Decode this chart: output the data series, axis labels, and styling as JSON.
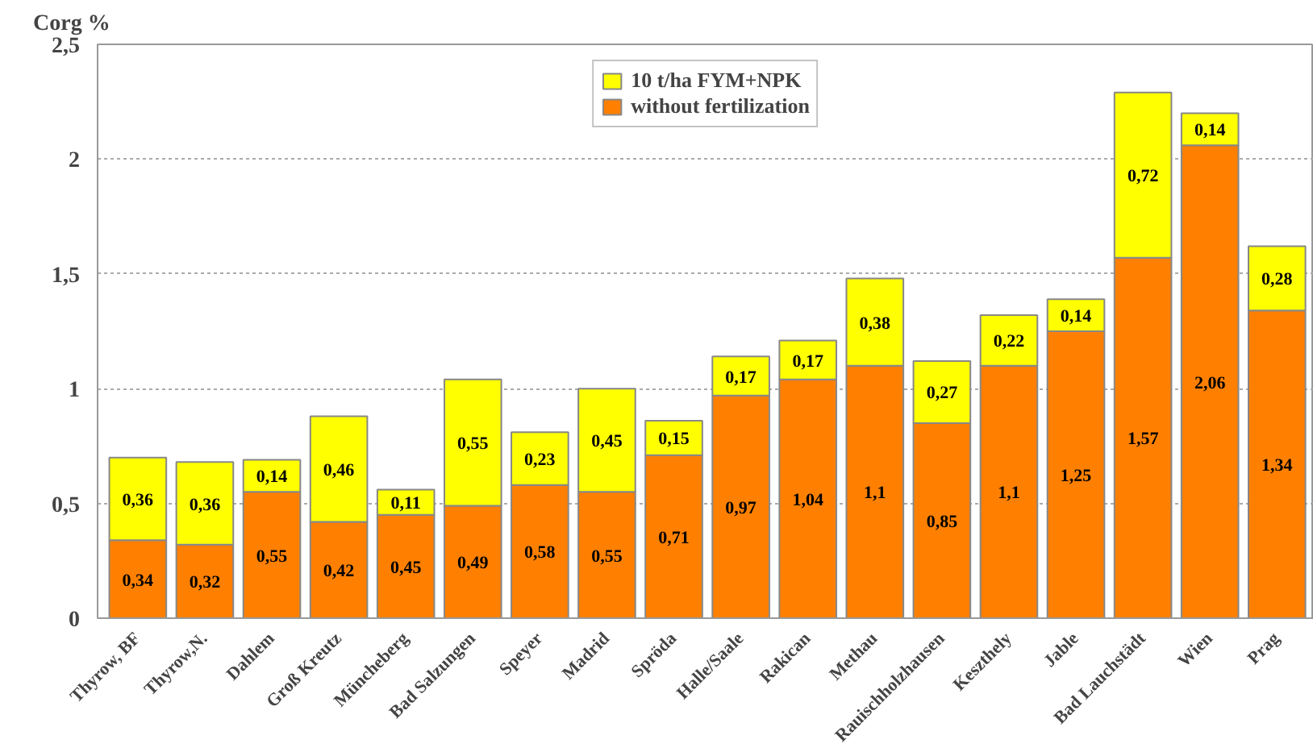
{
  "chart_data": {
    "type": "bar",
    "stacked": true,
    "ylabel": "Corg %",
    "categories": [
      "Thyrow, BF",
      "Thyrow,N.",
      "Dahlem",
      "Groß Kreutz",
      "Müncheberg",
      "Bad Salzungen",
      "Speyer",
      "Madrid",
      "Spröda",
      "Halle/Saale",
      "Rakican",
      "Methau",
      "Rauischholzhausen",
      "Keszthely",
      "Jable",
      "Bad Lauchstädt",
      "Wien",
      "Prag"
    ],
    "series": [
      {
        "name": "without fertilization",
        "color": "#ff8000",
        "values": [
          0.34,
          0.32,
          0.55,
          0.42,
          0.45,
          0.49,
          0.58,
          0.55,
          0.71,
          0.97,
          1.04,
          1.1,
          0.85,
          1.1,
          1.25,
          1.57,
          2.06,
          1.34
        ],
        "value_labels": [
          "0,34",
          "0,32",
          "0,55",
          "0,42",
          "0,45",
          "0,49",
          "0,58",
          "0,55",
          "0,71",
          "0,97",
          "1,04",
          "1,1",
          "0,85",
          "1,1",
          "1,25",
          "1,57",
          "2,06",
          "1,34"
        ]
      },
      {
        "name": "10 t/ha FYM+NPK",
        "color": "#ffff00",
        "values": [
          0.36,
          0.36,
          0.14,
          0.46,
          0.11,
          0.55,
          0.23,
          0.45,
          0.15,
          0.17,
          0.17,
          0.38,
          0.27,
          0.22,
          0.14,
          0.72,
          0.14,
          0.28
        ],
        "value_labels": [
          "0,36",
          "0,36",
          "0,14",
          "0,46",
          "0,11",
          "0,55",
          "0,23",
          "0,45",
          "0,15",
          "0,17",
          "0,17",
          "0,38",
          "0,27",
          "0,22",
          "0,14",
          "0,72",
          "0,14",
          "0,28"
        ]
      }
    ],
    "ylim": [
      0,
      2.5
    ],
    "yticks": [
      0,
      {
        "value": 0.5,
        "label": "0,5"
      },
      1,
      {
        "value": 1.5,
        "label": "1,5"
      },
      2,
      {
        "value": 2.5,
        "label": "2,5"
      }
    ],
    "grid": "y",
    "legend": "top"
  }
}
